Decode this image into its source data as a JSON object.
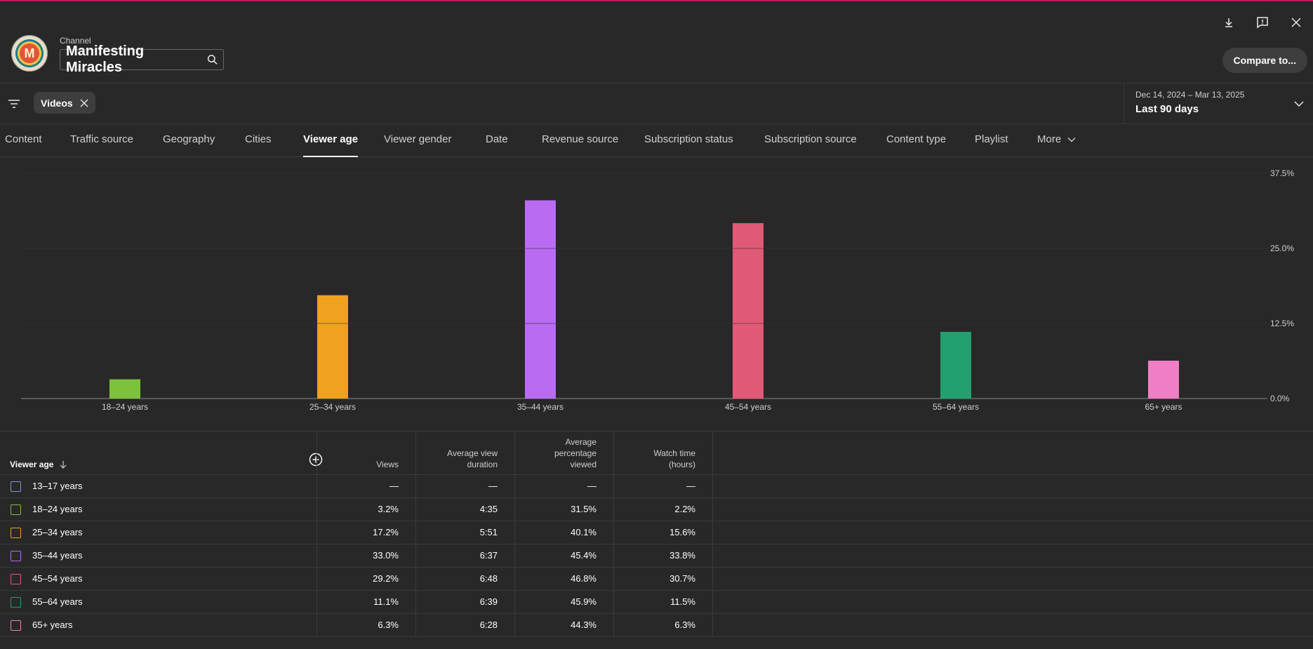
{
  "header": {
    "channel_label": "Channel",
    "channel_name": "Manifesting Miracles",
    "avatar_letter": "M",
    "compare_label": "Compare to...",
    "icons": [
      "download-icon",
      "feedback-icon",
      "close-icon"
    ]
  },
  "filters": {
    "chip_label": "Videos",
    "date_range": "Dec 14, 2024 – Mar 13, 2025",
    "date_preset": "Last 90 days"
  },
  "tabs": [
    {
      "label": "Content",
      "active": false
    },
    {
      "label": "Traffic source",
      "active": false
    },
    {
      "label": "Geography",
      "active": false
    },
    {
      "label": "Cities",
      "active": false
    },
    {
      "label": "Viewer age",
      "active": true
    },
    {
      "label": "Viewer gender",
      "active": false
    },
    {
      "label": "Date",
      "active": false
    },
    {
      "label": "Revenue source",
      "active": false
    },
    {
      "label": "Subscription status",
      "active": false
    },
    {
      "label": "Subscription source",
      "active": false
    },
    {
      "label": "Content type",
      "active": false
    },
    {
      "label": "Playlist",
      "active": false
    },
    {
      "label": "More",
      "active": false
    }
  ],
  "chart_data": {
    "type": "bar",
    "categories": [
      "18–24 years",
      "25–34 years",
      "35–44 years",
      "45–54 years",
      "55–64 years",
      "65+ years"
    ],
    "values": [
      3.2,
      17.2,
      33.0,
      29.2,
      11.1,
      6.3
    ],
    "colors": [
      "#7cc23a",
      "#eea21e",
      "#b96cf2",
      "#e05a77",
      "#22a070",
      "#f07ec4"
    ],
    "ylim": [
      0,
      37.5
    ],
    "yticks": [
      "0.0%",
      "12.5%",
      "25.0%",
      "37.5%"
    ],
    "ytick_values": [
      0,
      12.5,
      25,
      37.5
    ],
    "grid": true,
    "y_axis_position": "right"
  },
  "table": {
    "headers": {
      "first": "Viewer age",
      "views": "Views",
      "avd_1": "Average view",
      "avd_2": "duration",
      "app_1": "Average",
      "app_2": "percentage",
      "app_3": "viewed",
      "wt_1": "Watch time",
      "wt_2": "(hours)"
    },
    "rows": [
      {
        "label": "13–17 years",
        "color": "#8b8bf0",
        "views": "—",
        "avd": "—",
        "app": "—",
        "wt": "—"
      },
      {
        "label": "18–24 years",
        "color": "#7cc23a",
        "views": "3.2%",
        "avd": "4:35",
        "app": "31.5%",
        "wt": "2.2%"
      },
      {
        "label": "25–34 years",
        "color": "#eea21e",
        "views": "17.2%",
        "avd": "5:51",
        "app": "40.1%",
        "wt": "15.6%"
      },
      {
        "label": "35–44 years",
        "color": "#b96cf2",
        "views": "33.0%",
        "avd": "6:37",
        "app": "45.4%",
        "wt": "33.8%"
      },
      {
        "label": "45–54 years",
        "color": "#e05a77",
        "views": "29.2%",
        "avd": "6:48",
        "app": "46.8%",
        "wt": "30.7%"
      },
      {
        "label": "55–64 years",
        "color": "#22a070",
        "views": "11.1%",
        "avd": "6:39",
        "app": "45.9%",
        "wt": "11.5%"
      },
      {
        "label": "65+ years",
        "color": "#f07ec4",
        "views": "6.3%",
        "avd": "6:28",
        "app": "44.3%",
        "wt": "6.3%"
      }
    ]
  }
}
